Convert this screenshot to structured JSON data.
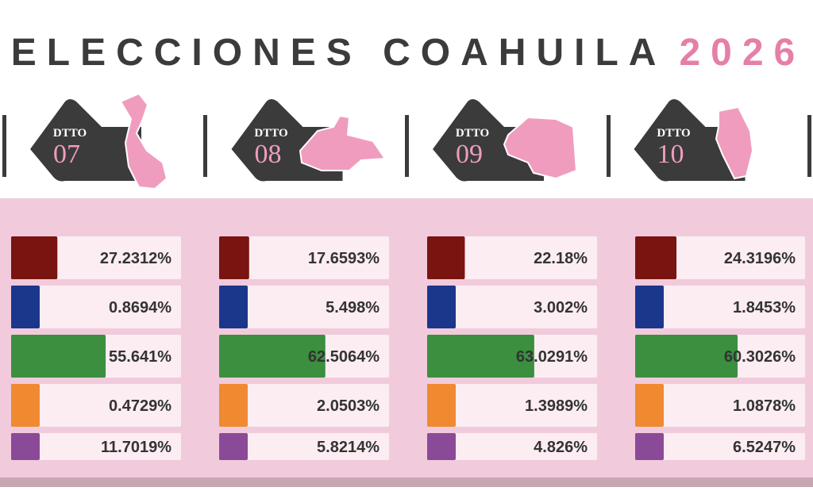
{
  "title": "ELECCIONES COAHUILA",
  "year": "2026",
  "chart_data": [
    {
      "type": "bar",
      "label": "DTTO",
      "district": "07",
      "xlim": [
        0,
        100
      ],
      "colors": [
        "#7a1410",
        "#1b378c",
        "#3b8f3f",
        "#ef8a30",
        "#8b4a98"
      ],
      "values": [
        27.2312,
        0.8694,
        55.641,
        0.4729,
        11.7019
      ],
      "value_labels": [
        "27.2312%",
        "0.8694%",
        "55.641%",
        "0.4729%",
        "11.7019%"
      ]
    },
    {
      "type": "bar",
      "label": "DTTO",
      "district": "08",
      "xlim": [
        0,
        100
      ],
      "colors": [
        "#7a1410",
        "#1b378c",
        "#3b8f3f",
        "#ef8a30",
        "#8b4a98"
      ],
      "values": [
        17.6593,
        5.498,
        62.5064,
        2.0503,
        5.8214
      ],
      "value_labels": [
        "17.6593%",
        "5.498%",
        "62.5064%",
        "2.0503%",
        "5.8214%"
      ]
    },
    {
      "type": "bar",
      "label": "DTTO",
      "district": "09",
      "xlim": [
        0,
        100
      ],
      "colors": [
        "#7a1410",
        "#1b378c",
        "#3b8f3f",
        "#ef8a30",
        "#8b4a98"
      ],
      "values": [
        22.18,
        3.002,
        63.0291,
        1.3989,
        4.826
      ],
      "value_labels": [
        "22.18%",
        "3.002%",
        "63.0291%",
        "1.3989%",
        "4.826%"
      ]
    },
    {
      "type": "bar",
      "label": "DTTO",
      "district": "10",
      "xlim": [
        0,
        100
      ],
      "colors": [
        "#7a1410",
        "#1b378c",
        "#3b8f3f",
        "#ef8a30",
        "#8b4a98"
      ],
      "values": [
        24.3196,
        1.8453,
        60.3026,
        1.0878,
        6.5247
      ],
      "value_labels": [
        "24.3196%",
        "1.8453%",
        "60.3026%",
        "1.0878%",
        "6.5247%"
      ]
    }
  ]
}
